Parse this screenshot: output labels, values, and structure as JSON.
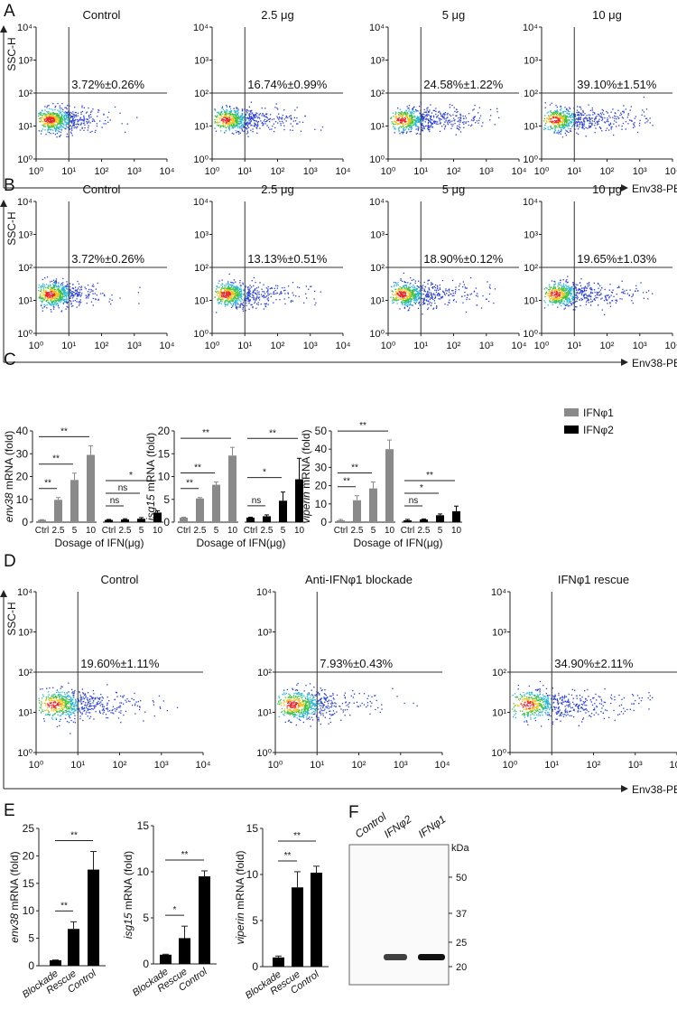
{
  "panel_labels": [
    "A",
    "B",
    "C",
    "D",
    "E",
    "F"
  ],
  "flow": {
    "y_axis_label": "SSC-H",
    "x_axis_label": "Env38-PE",
    "tick_labels": [
      "10⁰",
      "10¹",
      "10²",
      "10³",
      "10⁴"
    ],
    "panel_A": [
      {
        "title": "Control",
        "percent": "3.72%±0.26%",
        "value": 3.72
      },
      {
        "title": "2.5 μg",
        "percent": "16.74%±0.99%",
        "value": 16.74
      },
      {
        "title": "5 μg",
        "percent": "24.58%±1.22%",
        "value": 24.58
      },
      {
        "title": "10 μg",
        "percent": "39.10%±1.51%",
        "value": 39.1
      }
    ],
    "panel_B": [
      {
        "title": "Control",
        "percent": "3.72%±0.26%",
        "value": 3.72
      },
      {
        "title": "2.5 μg",
        "percent": "13.13%±0.51%",
        "value": 13.13
      },
      {
        "title": "5 μg",
        "percent": "18.90%±0.12%",
        "value": 18.9
      },
      {
        "title": "10 μg",
        "percent": "19.65%±1.03%",
        "value": 19.65
      }
    ],
    "panel_D": [
      {
        "title": "Control",
        "percent": "19.60%±1.11%",
        "value": 19.6
      },
      {
        "title": "Anti-IFNφ1 blockade",
        "percent": "7.93%±0.43%",
        "value": 7.93
      },
      {
        "title": "IFNφ1 rescue",
        "percent": "34.90%±2.11%",
        "value": 34.9
      }
    ]
  },
  "chart_data": [
    {
      "type": "bar",
      "panel": "C",
      "ylabel_italic": "env38",
      "ylabel_rest": " mRNA (fold)",
      "xlabel": "Dosage of IFN(μg)",
      "categories": [
        "Ctrl",
        "2.5",
        "5",
        "10"
      ],
      "ylim": [
        0,
        40
      ],
      "yticks": [
        "0",
        "10",
        "20",
        "30",
        "40"
      ],
      "series": [
        {
          "name": "IFNφ1",
          "values": [
            1,
            9.8,
            18.5,
            29.5
          ],
          "errors": [
            0.1,
            1.0,
            3.0,
            4.0
          ]
        },
        {
          "name": "IFNφ2",
          "values": [
            1,
            1.2,
            1.5,
            4.2
          ],
          "errors": [
            0.2,
            0.3,
            0.5,
            0.8
          ]
        }
      ],
      "significance": [
        [
          "**",
          "**",
          "**"
        ],
        [
          "ns",
          "ns",
          "*"
        ]
      ]
    },
    {
      "type": "bar",
      "panel": "C",
      "ylabel_italic": "isg15",
      "ylabel_rest": " mRNA (fold)",
      "xlabel": "Dosage of IFN(μg)",
      "categories": [
        "Ctrl",
        "2.5",
        "5",
        "10"
      ],
      "ylim": [
        0,
        20
      ],
      "yticks": [
        "0",
        "5",
        "10",
        "15",
        "20"
      ],
      "series": [
        {
          "name": "IFNφ1",
          "values": [
            1,
            5.2,
            8.2,
            14.6
          ],
          "errors": [
            0.1,
            0.2,
            0.6,
            1.8
          ]
        },
        {
          "name": "IFNφ2",
          "values": [
            1,
            1.3,
            4.7,
            9.4
          ],
          "errors": [
            0.1,
            0.3,
            1.9,
            4.6
          ]
        }
      ],
      "significance": [
        [
          "**",
          "**",
          "**"
        ],
        [
          "ns",
          "*",
          "**"
        ]
      ]
    },
    {
      "type": "bar",
      "panel": "C",
      "ylabel_italic": "viperin",
      "ylabel_rest": " mRNA (fold)",
      "xlabel": "Dosage of IFN(μg)",
      "categories": [
        "Ctrl",
        "2.5",
        "5",
        "10"
      ],
      "ylim": [
        0,
        50
      ],
      "yticks": [
        "0",
        "10",
        "20",
        "30",
        "40",
        "50"
      ],
      "series": [
        {
          "name": "IFNφ1",
          "values": [
            1,
            12,
            18.5,
            40
          ],
          "errors": [
            0.5,
            2.5,
            3.5,
            5.0
          ]
        },
        {
          "name": "IFNφ2",
          "values": [
            1,
            1.5,
            3.8,
            6
          ],
          "errors": [
            0.5,
            0.3,
            0.7,
            2.8
          ]
        }
      ],
      "significance": [
        [
          "**",
          "**",
          "**"
        ],
        [
          "ns",
          "*",
          "**"
        ]
      ],
      "legend": [
        "IFNφ1",
        "IFNφ2"
      ],
      "legend_position": "top-right"
    },
    {
      "type": "bar",
      "panel": "E",
      "ylabel_italic": "env38",
      "ylabel_rest": " mRNA (fold)",
      "categories": [
        "Blockade",
        "Rescue",
        "Control"
      ],
      "ylim": [
        0,
        25
      ],
      "yticks": [
        "0",
        "5",
        "10",
        "15",
        "20",
        "25"
      ],
      "values": [
        1,
        6.7,
        17.5
      ],
      "errors": [
        0.05,
        1.3,
        3.3
      ],
      "significance": [
        "**",
        "**"
      ]
    },
    {
      "type": "bar",
      "panel": "E",
      "ylabel_italic": "isg15",
      "ylabel_rest": " mRNA (fold)",
      "categories": [
        "Blockade",
        "Rescue",
        "Control"
      ],
      "ylim": [
        0,
        15
      ],
      "yticks": [
        "0",
        "5",
        "10",
        "15"
      ],
      "values": [
        1,
        2.8,
        9.5
      ],
      "errors": [
        0.05,
        1.3,
        0.6
      ],
      "significance": [
        "*",
        "**"
      ]
    },
    {
      "type": "bar",
      "panel": "E",
      "ylabel_italic": "viperin",
      "ylabel_rest": " mRNA (fold)",
      "categories": [
        "Blockade",
        "Rescue",
        "Control"
      ],
      "ylim": [
        0,
        15
      ],
      "yticks": [
        "0",
        "5",
        "10",
        "15"
      ],
      "values": [
        1,
        8.6,
        10.2
      ],
      "errors": [
        0.15,
        1.7,
        0.7
      ],
      "significance": [
        "**",
        "**"
      ]
    }
  ],
  "blot": {
    "lanes": [
      "Control",
      "IFNφ2",
      "IFNφ1"
    ],
    "unit": "kDa",
    "markers": [
      "50",
      "37",
      "25",
      "20"
    ],
    "band_intensity": [
      0,
      0.8,
      1.0
    ]
  },
  "colors": {
    "ifn1": "#8a8a8a",
    "ifn2": "#000000",
    "gate": "#333333"
  }
}
